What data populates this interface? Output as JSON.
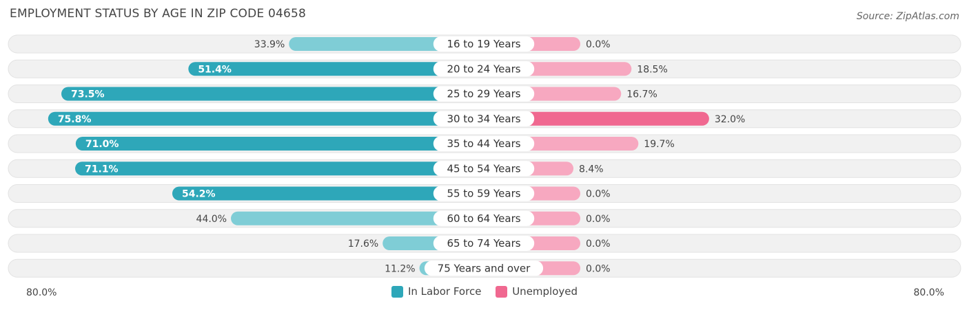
{
  "title": "EMPLOYMENT STATUS BY AGE IN ZIP CODE 04658",
  "source": "Source: ZipAtlas.com",
  "colors": {
    "labor": "#2ea7b9",
    "labor_light": "#7fcdd6",
    "unemployed": "#f06890",
    "unemployed_light": "#f7a8c0",
    "row_bg": "#f1f1f1"
  },
  "axis": {
    "left_label": "80.0%",
    "right_label": "80.0%"
  },
  "chart_data": {
    "type": "bar",
    "orientation": "horizontal-diverging",
    "title": "EMPLOYMENT STATUS BY AGE IN ZIP CODE 04658",
    "categories": [
      "16 to 19 Years",
      "20 to 24 Years",
      "25 to 29 Years",
      "30 to 34 Years",
      "35 to 44 Years",
      "45 to 54 Years",
      "55 to 59 Years",
      "60 to 64 Years",
      "65 to 74 Years",
      "75 Years and over"
    ],
    "series": [
      {
        "name": "In Labor Force",
        "values": [
          33.9,
          51.4,
          73.5,
          75.8,
          71.0,
          71.1,
          54.2,
          44.0,
          17.6,
          11.2
        ],
        "labels": [
          "33.9%",
          "51.4%",
          "73.5%",
          "75.8%",
          "71.0%",
          "71.1%",
          "54.2%",
          "44.0%",
          "17.6%",
          "11.2%"
        ]
      },
      {
        "name": "Unemployed",
        "values": [
          0.0,
          18.5,
          16.7,
          32.0,
          19.7,
          8.4,
          0.0,
          0.0,
          0.0,
          0.0
        ],
        "labels": [
          "0.0%",
          "18.5%",
          "16.7%",
          "32.0%",
          "19.7%",
          "8.4%",
          "0.0%",
          "0.0%",
          "0.0%",
          "0.0%"
        ]
      }
    ],
    "xlim": [
      -80,
      80
    ],
    "legend": "bottom-center"
  }
}
